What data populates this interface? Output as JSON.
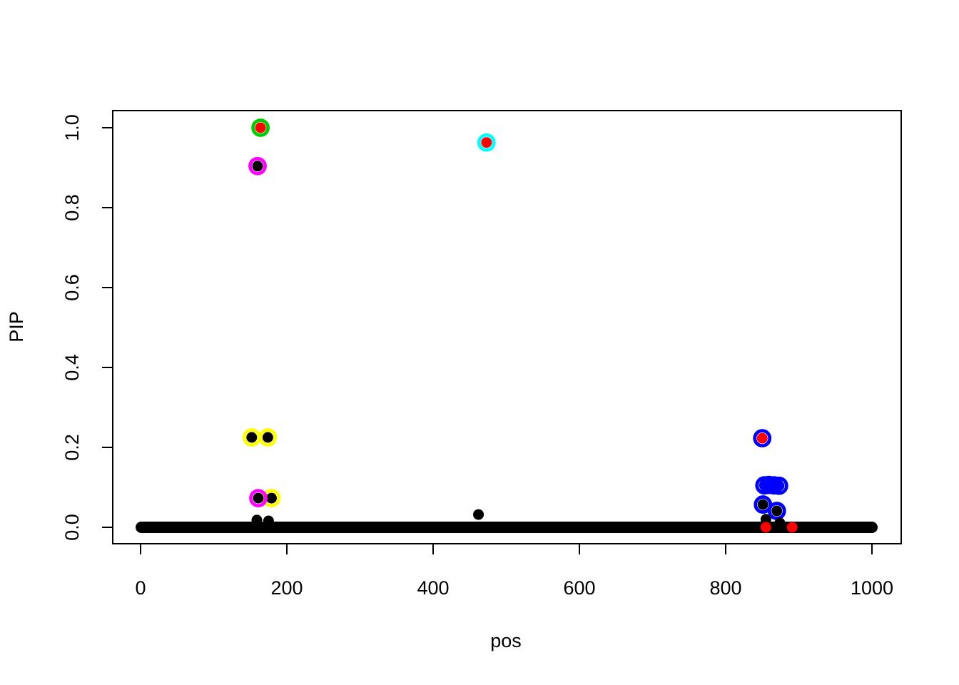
{
  "figure": {
    "background": "#ffffff",
    "description": "R base-graphics scatter plot of PIP versus pos with highlighted credible-set points"
  },
  "chart_data": {
    "type": "scatter",
    "title": "",
    "xlabel": "pos",
    "ylabel": "PIP",
    "xlim": [
      -38,
      1040
    ],
    "ylim": [
      -0.043,
      1.043
    ],
    "grid": false,
    "legend": null,
    "x_ticks": [
      0,
      200,
      400,
      600,
      800,
      1000
    ],
    "x_tick_labels": [
      "0",
      "200",
      "400",
      "600",
      "800",
      "1000"
    ],
    "y_ticks": [
      0.0,
      0.2,
      0.4,
      0.6,
      0.8,
      1.0
    ],
    "y_tick_labels": [
      "0.0",
      "0.2",
      "0.4",
      "0.6",
      "0.8",
      "1.0"
    ],
    "colors": {
      "point_default": "#000000",
      "point_signal": "#FF0000",
      "ring_green": "#00CD00",
      "ring_magenta": "#FF00FF",
      "ring_cyan": "#00FFFF",
      "ring_yellow": "#FFFF00",
      "ring_blue": "#0000FF",
      "axis": "#000000"
    },
    "baseline": {
      "description": "dense row of black points spanning the x-range at PIP = 0",
      "y": 0.0,
      "x_min": 1,
      "x_max": 1000,
      "color": "#000000"
    },
    "points": [
      {
        "x": 152,
        "y": 0.225,
        "fill": "#000000",
        "ring": "#FFFF00"
      },
      {
        "x": 174,
        "y": 0.225,
        "fill": "#000000",
        "ring": "#FFFF00"
      },
      {
        "x": 179,
        "y": 0.073,
        "fill": "#000000",
        "ring": "#FFFF00"
      },
      {
        "x": 161,
        "y": 0.073,
        "fill": "#000000",
        "ring": "#FF00FF"
      },
      {
        "x": 160,
        "y": 0.904,
        "fill": "#000000",
        "ring": "#FF00FF"
      },
      {
        "x": 164,
        "y": 1.0,
        "fill": "#FF0000",
        "ring": "#00CD00"
      },
      {
        "x": 473,
        "y": 0.963,
        "fill": "#FF0000",
        "ring": "#00FFFF"
      },
      {
        "x": 853,
        "y": 0.105,
        "fill": "#0000FF",
        "ring": "#0000FF"
      },
      {
        "x": 859,
        "y": 0.106,
        "fill": "#0000FF",
        "ring": "#0000FF"
      },
      {
        "x": 866,
        "y": 0.105,
        "fill": "#0000FF",
        "ring": "#0000FF"
      },
      {
        "x": 873,
        "y": 0.104,
        "fill": "#0000FF",
        "ring": "#0000FF"
      },
      {
        "x": 850,
        "y": 0.223,
        "fill": "#FF0000",
        "ring": "#0000FF"
      },
      {
        "x": 851,
        "y": 0.057,
        "fill": "#000000",
        "ring": "#0000FF"
      },
      {
        "x": 870,
        "y": 0.041,
        "fill": "#000000",
        "ring": "#0000FF"
      },
      {
        "x": 159,
        "y": 0.018,
        "fill": "#000000",
        "ring": null
      },
      {
        "x": 175,
        "y": 0.016,
        "fill": "#000000",
        "ring": null
      },
      {
        "x": 462,
        "y": 0.032,
        "fill": "#000000",
        "ring": null
      },
      {
        "x": 855,
        "y": 0.02,
        "fill": "#000000",
        "ring": null
      },
      {
        "x": 874,
        "y": 0.011,
        "fill": "#000000",
        "ring": null
      },
      {
        "x": 855,
        "y": 0.0,
        "fill": "#FF0000",
        "ring": null
      },
      {
        "x": 891,
        "y": 0.0,
        "fill": "#FF0000",
        "ring": null
      }
    ]
  }
}
